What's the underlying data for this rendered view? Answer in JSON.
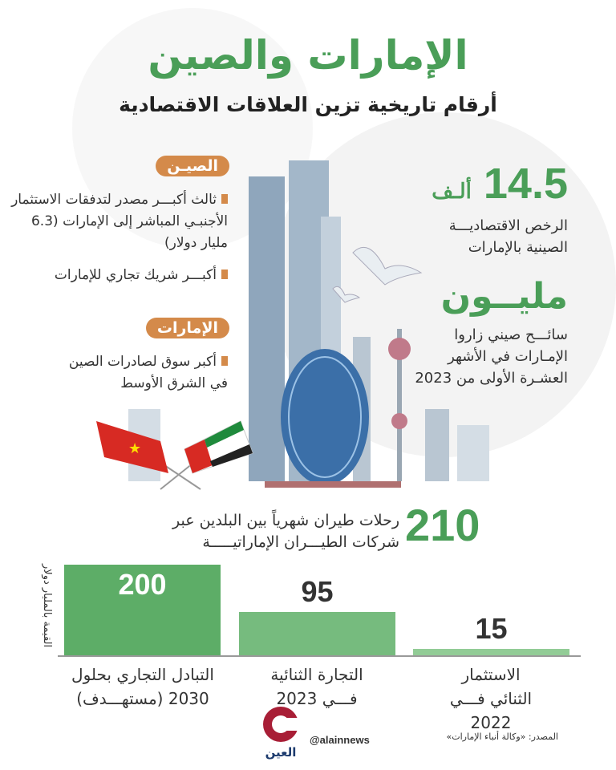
{
  "title": "الإمارات والصين",
  "subtitle": "أرقام تاريخية تزين العلاقات الاقتصادية",
  "china": {
    "label": "الصيـن",
    "items": [
      "ثالث أكبـــر مصدر لتدفقات الاستثمار الأجنبـي المباشر إلى الإمارات (6.3 مليار دولار)",
      "أكبـــر شريك تجاري للإمارات"
    ]
  },
  "uae": {
    "label": "الإمارات",
    "items": [
      "أكبر سوق لصادرات الصين في الشرق الأوسط"
    ]
  },
  "stats": [
    {
      "value": "14.5",
      "unit": "ألـف",
      "desc": "الرخص الاقتصاديـــة الصينية بالإمارات"
    },
    {
      "value": "مليــون",
      "desc": "سائـــح صيني زاروا الإمـارات في الأشهر العشـرة الأولى من 2023"
    },
    {
      "value": "210",
      "desc": "رحلات طيران شهرياً بين البلدين عبر شركات الطيـــران الإماراتيـــــة"
    }
  ],
  "chart_data": {
    "type": "bar",
    "ylabel": "القيمة بالمليار دولار",
    "categories": [
      "التبادل التجاري بحلول 2030 (مستهـــدف)",
      "التجارة الثنائية فـــي 2023",
      "الاستثمار الثنائي فـــي 2022"
    ],
    "values": [
      200,
      95,
      15
    ],
    "value_labels": [
      "200",
      "95",
      "15"
    ],
    "colors": [
      "#5dad67",
      "#76bb7e",
      "#92cc96"
    ],
    "ylim": [
      0,
      200
    ]
  },
  "footer": {
    "handle": "@alainnews",
    "source": "المصدر: «وكالة أنباء الإمارات»",
    "logo_text": "العين"
  },
  "colors": {
    "accent": "#4a9e58",
    "pill": "#d48a4a"
  }
}
